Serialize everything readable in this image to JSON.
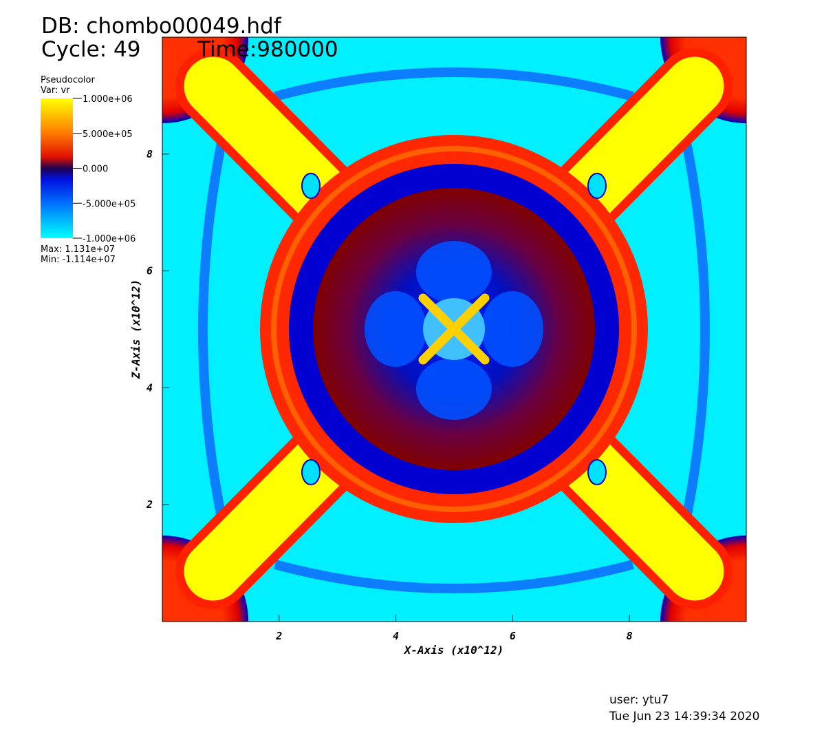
{
  "chart_data": {
    "type": "pseudocolor",
    "db_label": "DB: chombo00049.hdf",
    "cycle_label": "Cycle: 49",
    "time_label": "Time:980000",
    "legend_title": "Pseudocolor",
    "legend_var": "Var: vr",
    "max_label": "Max:  1.131e+07",
    "min_label": "Min: -1.114e+07",
    "x_label": "X-Axis (x10^12)",
    "y_label": "Z-Axis (x10^12)",
    "xlim": [
      0,
      10
    ],
    "ylim": [
      0,
      10
    ],
    "xticks": [
      2,
      4,
      6,
      8
    ],
    "yticks": [
      2,
      4,
      6,
      8
    ],
    "clim": [
      -1000000,
      1000000
    ],
    "cticks": [
      {
        "value": 1000000,
        "label": "1.000e+06"
      },
      {
        "value": 500000,
        "label": "5.000e+05"
      },
      {
        "value": 0,
        "label": "0.000"
      },
      {
        "value": -500000,
        "label": "-5.000e+05"
      },
      {
        "value": -1000000,
        "label": "-1.000e+06"
      }
    ],
    "user_label": "user: ytu7",
    "date_label": "Tue Jun 23 14:39:34 2020"
  }
}
